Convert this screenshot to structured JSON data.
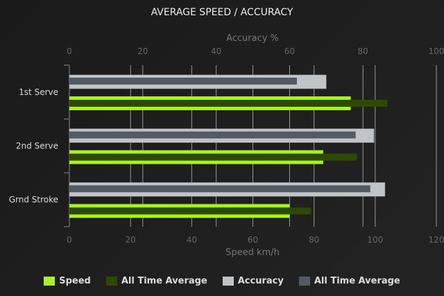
{
  "chart_data": {
    "type": "bar",
    "orientation": "horizontal",
    "title": "AVERAGE SPEED / ACCURACY",
    "categories": [
      "1st Serve",
      "2nd Serve",
      "Grnd Stroke"
    ],
    "top_axis": {
      "label": "Accuracy %",
      "range": [
        0,
        100
      ],
      "ticks": [
        0,
        20,
        40,
        60,
        80,
        100
      ]
    },
    "bottom_axis": {
      "label": "Speed km/h",
      "range": [
        0,
        120
      ],
      "ticks": [
        0,
        20,
        40,
        60,
        80,
        100,
        120
      ]
    },
    "series": [
      {
        "name": "Speed",
        "axis": "bottom",
        "color": "#a6f31f",
        "values": [
          92,
          83,
          72
        ]
      },
      {
        "name": "All Time Average",
        "axis": "bottom",
        "color": "#2e4a00",
        "values": [
          104,
          94,
          79
        ]
      },
      {
        "name": "Accuracy",
        "axis": "top",
        "color": "#c0c4c6",
        "values": [
          70,
          83,
          86
        ]
      },
      {
        "name": "All Time Average",
        "axis": "top",
        "color": "#545a61",
        "values": [
          62,
          78,
          82
        ]
      }
    ],
    "grid": true,
    "legend_position": "bottom"
  }
}
